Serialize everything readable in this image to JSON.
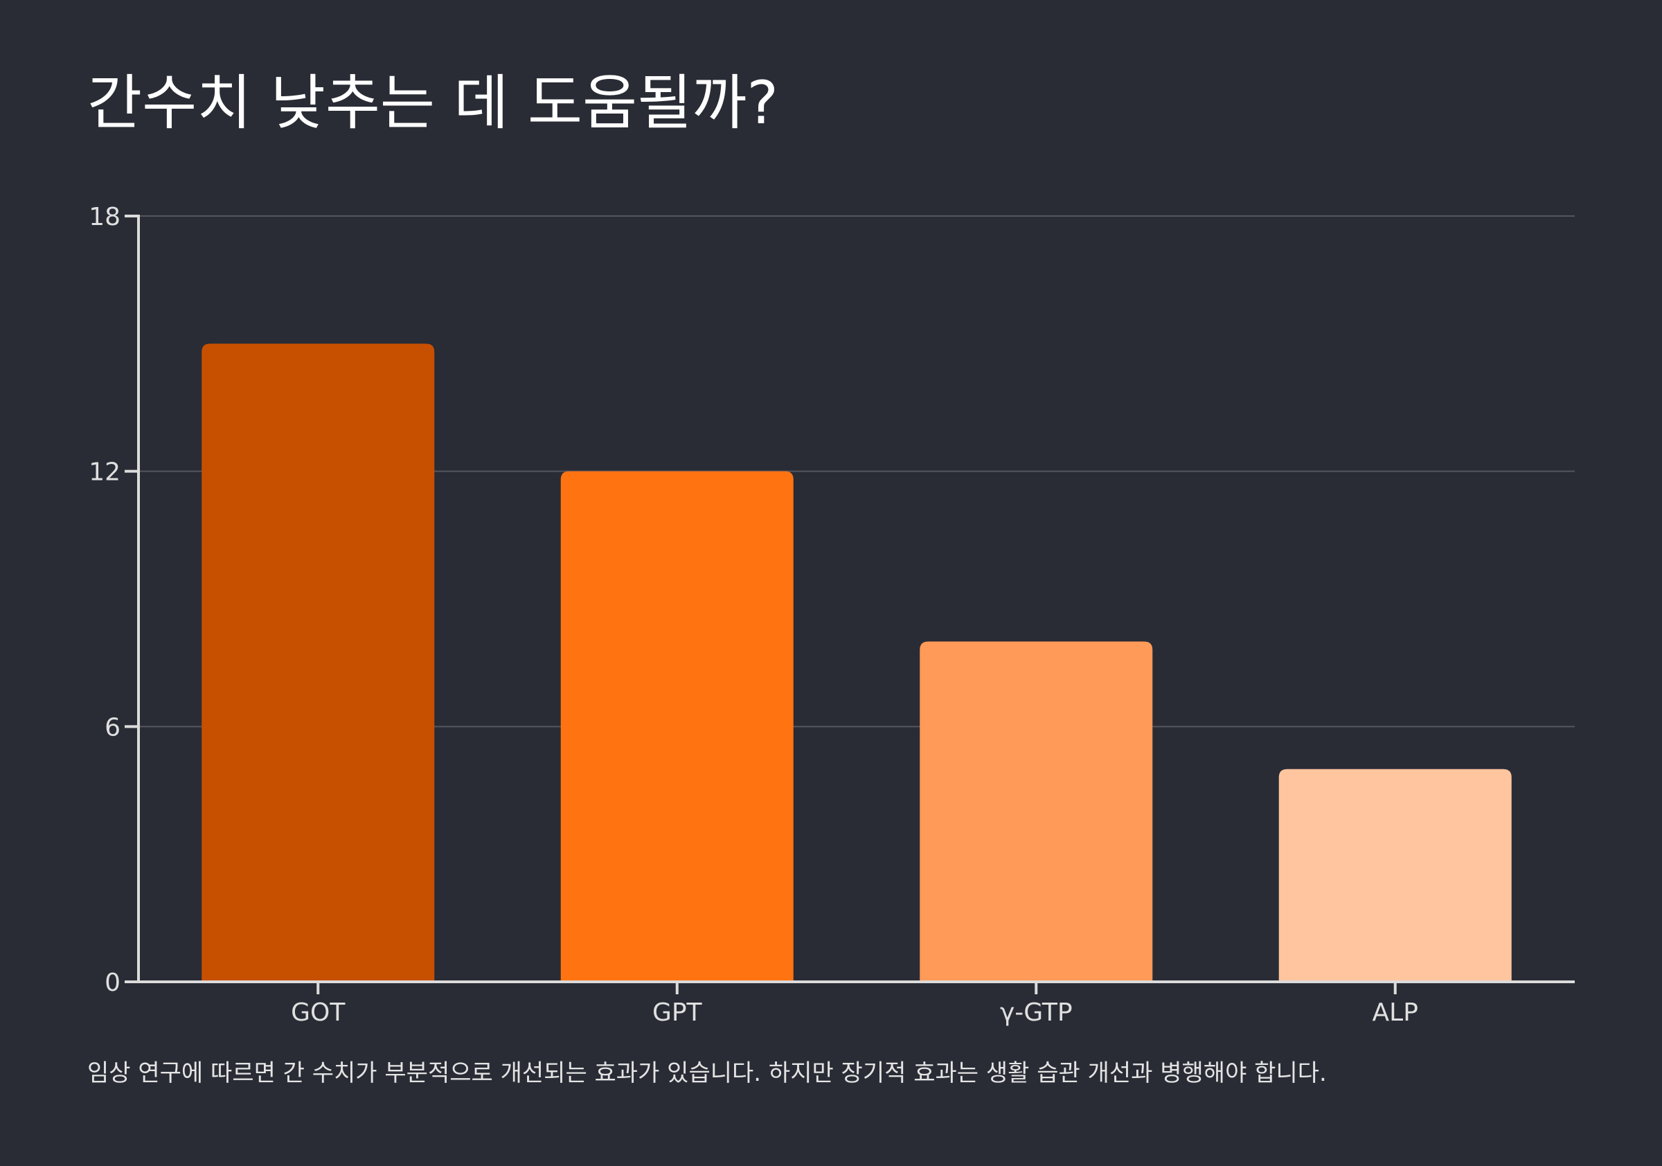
{
  "title": "간수치 낮추는 데 도움될까?",
  "footnote": "임상 연구에 따르면 간 수치가 부분적으로 개선되는 효과가 있습니다. 하지만 장기적 효과는 생활 습관 개선과 병행해야 합니다.",
  "chart_data": {
    "type": "bar",
    "categories": [
      "GOT",
      "GPT",
      "γ-GTP",
      "ALP"
    ],
    "values": [
      15,
      12,
      8,
      5
    ],
    "colors": [
      "#c75000",
      "#ff7311",
      "#ff9a58",
      "#ffc59f"
    ],
    "ylim": [
      0,
      18
    ],
    "yticks": [
      0,
      6,
      12,
      18
    ],
    "xlabel": "",
    "ylabel": "",
    "grid": true,
    "grid_color": "#54565c",
    "axis_color": "#dcdcdc",
    "background": "#292c35"
  }
}
